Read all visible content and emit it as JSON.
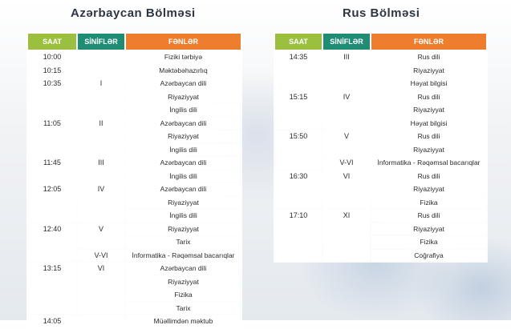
{
  "left": {
    "title": "Azərbaycan Bölməsi",
    "headers": [
      "SAAT",
      "SİNİFLƏR",
      "FƏNLƏR"
    ],
    "blocks": [
      {
        "time": "10:00",
        "rows": [
          {
            "cls": "",
            "subj": "Fiziki tərbiyə"
          }
        ]
      },
      {
        "time": "10:15",
        "rows": [
          {
            "cls": "",
            "subj": "Məktəbəhazırlıq"
          }
        ]
      },
      {
        "time": "10:35",
        "rows": [
          {
            "cls": "I",
            "subj": "Azərbaycan dili"
          },
          {
            "cls": "",
            "subj": "Riyaziyyat"
          },
          {
            "cls": "",
            "subj": "İngilis dili"
          }
        ]
      },
      {
        "time": "11:05",
        "rows": [
          {
            "cls": "II",
            "subj": "Azərbaycan dili"
          },
          {
            "cls": "",
            "subj": "Riyaziyyat"
          },
          {
            "cls": "",
            "subj": "İngilis dili"
          }
        ]
      },
      {
        "time": "11:45",
        "rows": [
          {
            "cls": "III",
            "subj": "Azərbaycan dili"
          },
          {
            "cls": "",
            "subj": "İngilis dili"
          }
        ]
      },
      {
        "time": "12:05",
        "rows": [
          {
            "cls": "IV",
            "subj": "Azərbaycan dili"
          },
          {
            "cls": "",
            "subj": "Riyaziyyat"
          },
          {
            "cls": "",
            "subj": "İngilis dili"
          }
        ]
      },
      {
        "time": "12:40",
        "rows": [
          {
            "cls": "V",
            "subj": "Riyaziyyat"
          },
          {
            "cls": "",
            "subj": "Tarix"
          },
          {
            "cls": "V-VI",
            "subj": "İnformatika - Rəqəmsal bacarıqlar"
          }
        ]
      },
      {
        "time": "13:15",
        "rows": [
          {
            "cls": "VI",
            "subj": "Azərbaycan dili"
          },
          {
            "cls": "",
            "subj": "Riyaziyyat"
          },
          {
            "cls": "",
            "subj": "Fizika"
          },
          {
            "cls": "",
            "subj": "Tarix"
          }
        ]
      },
      {
        "time": "14:05",
        "rows": [
          {
            "cls": "",
            "subj": "Müəllimdən məktub"
          }
        ]
      }
    ]
  },
  "right": {
    "title": "Rus Bölməsi",
    "headers": [
      "SAAT",
      "SİNİFLƏR",
      "FƏNLƏR"
    ],
    "blocks": [
      {
        "time": "14:35",
        "rows": [
          {
            "cls": "III",
            "subj": "Rus dili"
          },
          {
            "cls": "",
            "subj": "Riyaziyyat"
          },
          {
            "cls": "",
            "subj": "Həyat bilgisi"
          }
        ]
      },
      {
        "time": "15:15",
        "rows": [
          {
            "cls": "IV",
            "subj": "Rus dili"
          },
          {
            "cls": "",
            "subj": "Riyaziyyat"
          },
          {
            "cls": "",
            "subj": "Həyat bilgisi"
          }
        ]
      },
      {
        "time": "15:50",
        "rows": [
          {
            "cls": "V",
            "subj": "Rus dili"
          },
          {
            "cls": "",
            "subj": "Riyaziyyat"
          },
          {
            "cls": "V-VI",
            "subj": "İnformatika - Rəqəmsal bacarıqlar"
          }
        ]
      },
      {
        "time": "16:30",
        "rows": [
          {
            "cls": "VI",
            "subj": "Rus dili"
          },
          {
            "cls": "",
            "subj": "Riyaziyyat"
          },
          {
            "cls": "",
            "subj": "Fizika"
          }
        ]
      },
      {
        "time": "17:10",
        "rows": [
          {
            "cls": "XI",
            "subj": "Rus dili"
          },
          {
            "cls": "",
            "subj": "Riyaziyyat"
          },
          {
            "cls": "",
            "subj": "Fizika"
          },
          {
            "cls": "",
            "subj": "Coğrafiya"
          }
        ]
      }
    ]
  },
  "colors": {
    "saat": "#9bbf3f",
    "sinif": "#1f8c74",
    "fenn": "#ee7e2d"
  }
}
